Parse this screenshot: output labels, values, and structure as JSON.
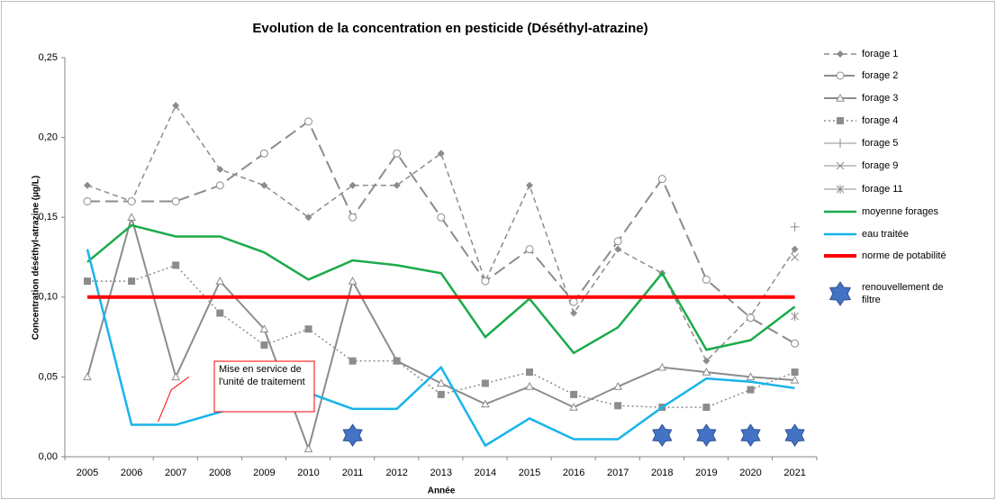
{
  "chart_data": {
    "type": "line",
    "title": "Evolution de la concentration en pesticide (Déséthyl-atrazine)",
    "x_label": "Année",
    "y_label": "Concentration déséthyl-atrazine (µg/L)",
    "annotation": "Mise en service de l'unité de traitement",
    "categories": [
      "2005",
      "2006",
      "2007",
      "2008",
      "2009",
      "2010",
      "2011",
      "2012",
      "2013",
      "2014",
      "2015",
      "2016",
      "2017",
      "2018",
      "2019",
      "2020",
      "2021"
    ],
    "ylim": [
      0,
      0.25
    ],
    "yticks": [
      {
        "value": 0,
        "label": "0,00"
      },
      {
        "value": 0.05,
        "label": "0,05"
      },
      {
        "value": 0.1,
        "label": "0,10"
      },
      {
        "value": 0.15,
        "label": "0,15"
      },
      {
        "value": 0.2,
        "label": "0,20"
      },
      {
        "value": 0.25,
        "label": "0,25"
      }
    ],
    "grid": false,
    "legend": "right",
    "series": [
      {
        "name": "forage 1",
        "color": "#8c8c8c",
        "dash": "6,4",
        "marker": "diamond",
        "width": 1.5,
        "values": [
          0.17,
          0.16,
          0.22,
          0.18,
          0.17,
          0.15,
          0.17,
          0.17,
          0.19,
          0.11,
          0.17,
          0.09,
          0.13,
          0.115,
          0.06,
          0.088,
          0.13
        ]
      },
      {
        "name": "forage 2",
        "color": "#8c8c8c",
        "dash": "14,6",
        "marker": "circle",
        "width": 2,
        "values": [
          0.16,
          0.16,
          0.16,
          0.17,
          0.19,
          0.21,
          0.15,
          0.19,
          0.15,
          0.11,
          0.13,
          0.097,
          0.135,
          0.174,
          0.111,
          0.087,
          0.071
        ]
      },
      {
        "name": "forage 3",
        "color": "#8c8c8c",
        "dash": "",
        "marker": "triangle",
        "width": 2,
        "values": [
          0.05,
          0.15,
          0.05,
          0.11,
          0.08,
          0.005,
          0.11,
          0.06,
          0.046,
          0.033,
          0.044,
          0.031,
          0.044,
          0.056,
          0.053,
          0.05,
          0.048
        ]
      },
      {
        "name": "forage 4",
        "color": "#8c8c8c",
        "dash": "2,3",
        "marker": "square",
        "width": 1.5,
        "values": [
          0.11,
          0.11,
          0.12,
          0.09,
          0.07,
          0.08,
          0.06,
          0.06,
          0.039,
          0.046,
          0.053,
          0.039,
          0.032,
          0.031,
          0.031,
          0.042,
          0.053
        ]
      },
      {
        "name": "forage 5",
        "color": "#8c8c8c",
        "dash": "",
        "marker": "plus",
        "width": 1,
        "values": [
          null,
          null,
          null,
          null,
          null,
          null,
          null,
          null,
          null,
          null,
          null,
          null,
          null,
          null,
          null,
          null,
          0.144
        ]
      },
      {
        "name": "forage 9",
        "color": "#8c8c8c",
        "dash": "",
        "marker": "x",
        "width": 1,
        "values": [
          null,
          null,
          null,
          null,
          null,
          null,
          null,
          null,
          null,
          null,
          null,
          null,
          null,
          null,
          null,
          null,
          0.125
        ]
      },
      {
        "name": "forage 11",
        "color": "#8c8c8c",
        "dash": "",
        "marker": "asterisk",
        "width": 1,
        "values": [
          null,
          null,
          null,
          null,
          null,
          null,
          null,
          null,
          null,
          null,
          null,
          null,
          null,
          null,
          null,
          null,
          0.088
        ]
      },
      {
        "name": "moyenne forages",
        "color": "#1aab4a",
        "dash": "",
        "marker": "none",
        "width": 2.5,
        "values": [
          0.122,
          0.145,
          0.138,
          0.138,
          0.128,
          0.111,
          0.123,
          0.12,
          0.115,
          0.075,
          0.099,
          0.065,
          0.081,
          0.115,
          0.067,
          0.073,
          0.094
        ]
      },
      {
        "name": "eau traitée",
        "color": "#19b4ea",
        "dash": "",
        "marker": "none",
        "width": 2.5,
        "values": [
          0.13,
          0.02,
          0.02,
          0.028,
          0.035,
          0.04,
          0.03,
          0.03,
          0.056,
          0.007,
          0.024,
          0.011,
          0.011,
          0.031,
          0.049,
          0.047,
          0.043
        ]
      },
      {
        "name": "norme de potabilité",
        "color": "#ff0000",
        "dash": "",
        "marker": "none",
        "width": 4,
        "values": [
          0.1,
          0.1,
          0.1,
          0.1,
          0.1,
          0.1,
          0.1,
          0.1,
          0.1,
          0.1,
          0.1,
          0.1,
          0.1,
          0.1,
          0.1,
          0.1,
          0.1
        ]
      },
      {
        "name": "renouvellement de filtre",
        "color": "#4472c4",
        "dash": "",
        "marker": "star",
        "width": 0,
        "values": [
          null,
          null,
          null,
          null,
          null,
          null,
          0.0135,
          null,
          null,
          null,
          null,
          null,
          null,
          0.0135,
          0.0135,
          0.0135,
          0.0135
        ]
      }
    ]
  }
}
